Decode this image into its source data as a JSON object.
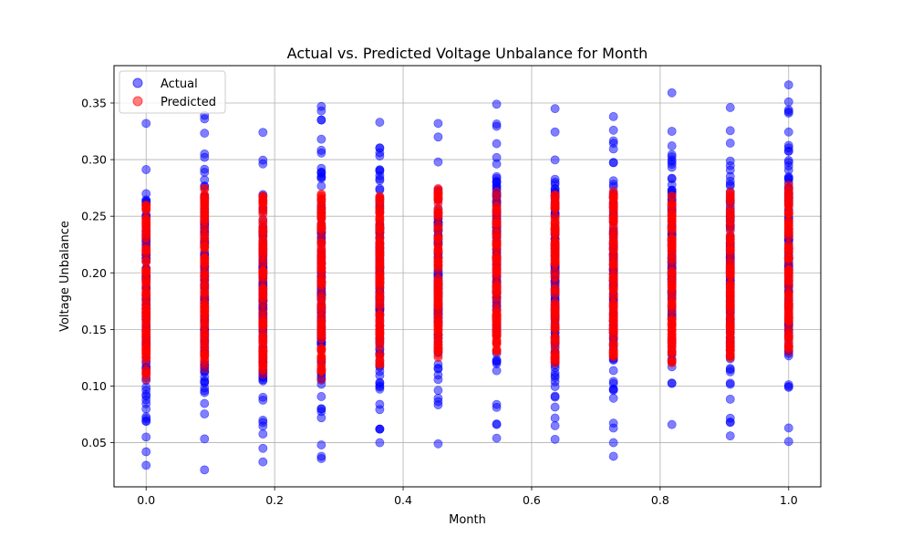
{
  "chart_data": {
    "type": "scatter",
    "title": "Actual vs. Predicted Voltage Unbalance for Month",
    "xlabel": "Month",
    "ylabel": "Voltage Unbalance",
    "xlim": [
      -0.05,
      1.05
    ],
    "ylim": [
      0.011,
      0.383
    ],
    "xticks": [
      0.0,
      0.2,
      0.4,
      0.6,
      0.8,
      1.0
    ],
    "xtick_labels": [
      "0.0",
      "0.2",
      "0.4",
      "0.6",
      "0.8",
      "1.0"
    ],
    "yticks": [
      0.05,
      0.1,
      0.15,
      0.2,
      0.25,
      0.3,
      0.35
    ],
    "ytick_labels": [
      "0.05",
      "0.10",
      "0.15",
      "0.20",
      "0.25",
      "0.30",
      "0.35"
    ],
    "grid": true,
    "legend_position": "top-left",
    "x_groups": [
      0.0,
      0.0909,
      0.1818,
      0.2727,
      0.3636,
      0.4545,
      0.5455,
      0.6364,
      0.7273,
      0.8182,
      0.9091,
      1.0
    ],
    "series": [
      {
        "name": "Actual",
        "color": "#0000ff",
        "alpha": 0.5,
        "ranges": [
          [
            0.03,
            0.332
          ],
          [
            0.026,
            0.339
          ],
          [
            0.033,
            0.324
          ],
          [
            0.036,
            0.347
          ],
          [
            0.05,
            0.333
          ],
          [
            0.049,
            0.332
          ],
          [
            0.054,
            0.349
          ],
          [
            0.053,
            0.345
          ],
          [
            0.038,
            0.338
          ],
          [
            0.066,
            0.359
          ],
          [
            0.056,
            0.346
          ],
          [
            0.051,
            0.366
          ]
        ],
        "outliers": [
          [
            0.0,
            0.03
          ],
          [
            0.0,
            0.055
          ],
          [
            0.0,
            0.332
          ],
          [
            0.0909,
            0.026
          ],
          [
            0.0909,
            0.339
          ],
          [
            0.0909,
            0.336
          ],
          [
            0.1818,
            0.033
          ],
          [
            0.1818,
            0.324
          ],
          [
            0.2727,
            0.036
          ],
          [
            0.2727,
            0.038
          ],
          [
            0.2727,
            0.347
          ],
          [
            0.2727,
            0.343
          ],
          [
            0.3636,
            0.05
          ],
          [
            0.3636,
            0.333
          ],
          [
            0.4545,
            0.049
          ],
          [
            0.4545,
            0.332
          ],
          [
            0.5455,
            0.054
          ],
          [
            0.5455,
            0.349
          ],
          [
            0.6364,
            0.053
          ],
          [
            0.6364,
            0.345
          ],
          [
            0.7273,
            0.038
          ],
          [
            0.7273,
            0.338
          ],
          [
            0.8182,
            0.066
          ],
          [
            0.8182,
            0.359
          ],
          [
            0.9091,
            0.056
          ],
          [
            0.9091,
            0.346
          ],
          [
            1.0,
            0.051
          ],
          [
            1.0,
            0.366
          ],
          [
            1.0,
            0.351
          ],
          [
            1.0,
            0.344
          ]
        ]
      },
      {
        "name": "Predicted",
        "color": "#ff0000",
        "alpha": 0.5,
        "ranges": [
          [
            0.105,
            0.265
          ],
          [
            0.115,
            0.275
          ],
          [
            0.11,
            0.268
          ],
          [
            0.105,
            0.27
          ],
          [
            0.115,
            0.268
          ],
          [
            0.125,
            0.278
          ],
          [
            0.13,
            0.272
          ],
          [
            0.12,
            0.27
          ],
          [
            0.125,
            0.272
          ],
          [
            0.12,
            0.268
          ],
          [
            0.125,
            0.272
          ],
          [
            0.13,
            0.28
          ]
        ]
      }
    ]
  }
}
